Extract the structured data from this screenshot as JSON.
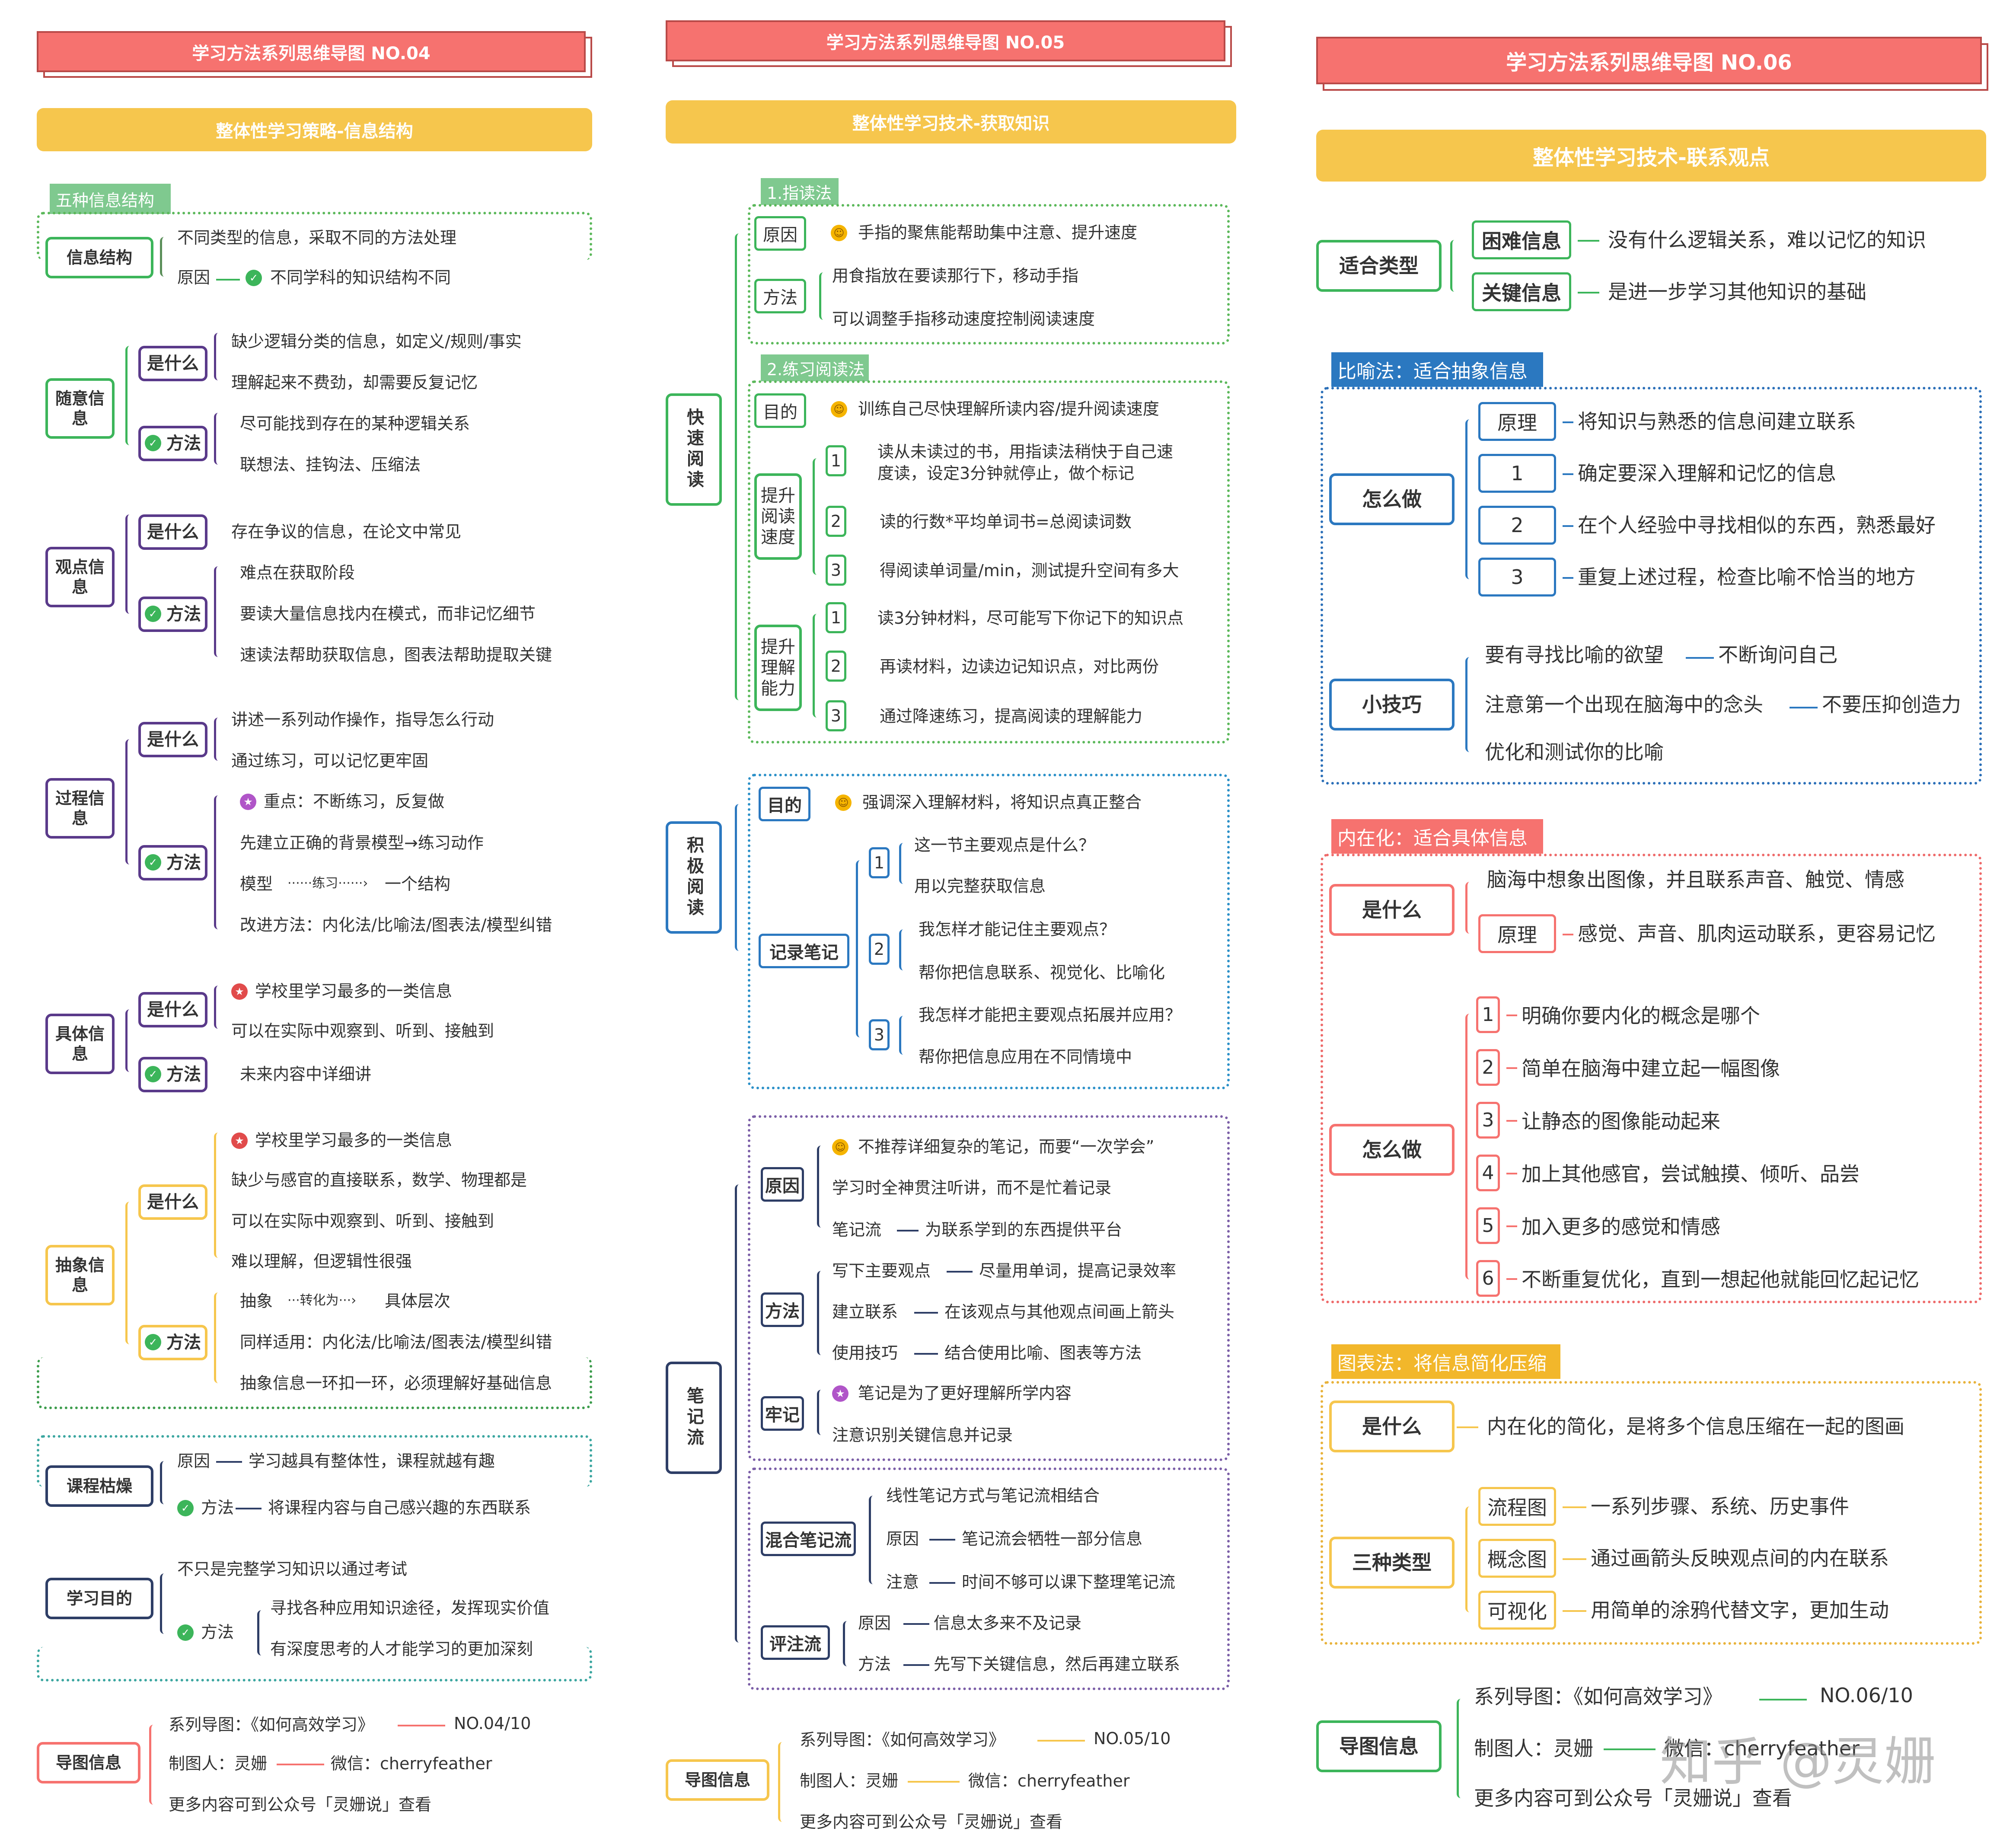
{
  "col1": {
    "title": "学习方法系列思维导图 NO.04",
    "subtitle": "整体性学习策略-信息结构",
    "tag": "五种信息结构",
    "nodes": {
      "xxjg": "信息结构",
      "sy": "随意信息",
      "gd": "观点信息",
      "gc": "过程信息",
      "jt": "具体信息",
      "cx": "抽象信息",
      "kc": "课程枯燥",
      "xx": "学习目的",
      "dt": "导图信息"
    },
    "what": "是什么",
    "method": "方法",
    "reason": "原因",
    "texts": {
      "a1": "不同类型的信息，采取不同的方法处理",
      "a2": "不同学科的知识结构不同",
      "b1": "缺少逻辑分类的信息，如定义/规则/事实",
      "b2": "理解起来不费劲，却需要反复记忆",
      "b3": "尽可能找到存在的某种逻辑关系",
      "b4": "联想法、挂钩法、压缩法",
      "c1": "存在争议的信息，在论文中常见",
      "c2": "难点在获取阶段",
      "c3": "要读大量信息找内在模式，而非记忆细节",
      "c4": "速读法帮助获取信息，图表法帮助提取关键",
      "d1": "讲述一系列动作操作，指导怎么行动",
      "d2": "通过练习，可以记忆更牢固",
      "d3": "重点：不断练习，反复做",
      "d4": "先建立正确的背景模型→练习动作",
      "d5a": "模型",
      "d5b": "······练习······›",
      "d5c": "一个结构",
      "d6": "改进方法：内化法/比喻法/图表法/模型纠错",
      "e1": "学校里学习最多的一类信息",
      "e2": "可以在实际中观察到、听到、接触到",
      "e3": "未来内容中详细讲",
      "f1": "学校里学习最多的一类信息",
      "f2": "缺少与感官的直接联系，数学、物理都是",
      "f3": "可以在实际中观察到、听到、接触到",
      "f4": "难以理解，但逻辑性很强",
      "f5a": "抽象",
      "f5b": "···转化为···›",
      "f5c": "具体层次",
      "f6": "同样适用：内化法/比喻法/图表法/模型纠错",
      "f7": "抽象信息一环扣一环，必须理解好基础信息",
      "g1": "学习越具有整体性，课程就越有趣",
      "g2": "将课程内容与自己感兴趣的东西联系",
      "h1": "不只是完整学习知识以通过考试",
      "h2": "寻找各种应用知识途径，发挥现实价值",
      "h3": "有深度思考的人才能学习的更加深刻",
      "i1": "系列导图：《如何高效学习》",
      "i1b": "NO.04/10",
      "i2": "制图人：灵姗",
      "i2b": "微信：cherryfeather",
      "i3": "更多内容可到公众号「灵姗说」查看"
    }
  },
  "col2": {
    "title": "学习方法系列思维导图 NO.05",
    "subtitle": "整体性学习技术-获取知识",
    "tag1": "1.指读法",
    "tag2": "2.练习阅读法",
    "nodes": {
      "ksyd": "快速阅读",
      "jjyd": "积极阅读",
      "bjl": "笔记流",
      "dt": "导图信息",
      "yy": "原因",
      "ff": "方法",
      "md": "目的",
      "tsydsd": "提升阅读速度",
      "tslj": "提升理解能力",
      "md2": "目的",
      "jlbj": "记录笔记",
      "yy2": "原因",
      "ff2": "方法",
      "lj": "牢记",
      "hh": "混合笔记流",
      "pz": "评注流"
    },
    "texts": {
      "a1": "手指的聚焦能帮助集中注意、提升速度",
      "a2": "用食指放在要读那行下，移动手指",
      "a3": "可以调整手指移动速度控制阅读速度",
      "b1": "训练自己尽快理解所读内容/提升阅读速度",
      "b2": "读从未读过的书，用指读法稍快于自己速",
      "b2b": "度读，设定3分钟就停止，做个标记",
      "b3": "读的行数*平均单词书=总阅读词数",
      "b4": "得阅读单词量/min，测试提升空间有多大",
      "b5": "读3分钟材料，尽可能写下你记下的知识点",
      "b6": "再读材料，边读边记知识点，对比两份",
      "b7": "通过降速练习，提高阅读的理解能力",
      "c1": "强调深入理解材料，将知识点真正整合",
      "c2": "这一节主要观点是什么？",
      "c3": "用以完整获取信息",
      "c4": "我怎样才能记住主要观点？",
      "c5": "帮你把信息联系、视觉化、比喻化",
      "c6": "我怎样才能把主要观点拓展并应用？",
      "c7": "帮你把信息应用在不同情境中",
      "d1": "不推荐详细复杂的笔记，而要“一次学会”",
      "d2": "学习时全神贯注听讲，而不是忙着记录",
      "d3": "笔记流",
      "d3b": "为联系学到的东西提供平台",
      "d4": "写下主要观点",
      "d4b": "尽量用单词，提高记录效率",
      "d5": "建立联系",
      "d5b": "在该观点与其他观点间画上箭头",
      "d6": "使用技巧",
      "d6b": "结合使用比喻、图表等方法",
      "d7": "笔记是为了更好理解所学内容",
      "d8": "注意识别关键信息并记录",
      "e1": "线性笔记方式与笔记流相结合",
      "e2": "原因",
      "e2b": "笔记流会牺牲一部分信息",
      "e3": "注意",
      "e3b": "时间不够可以课下整理笔记流",
      "e4": "原因",
      "e4b": "信息太多来不及记录",
      "e5": "方法",
      "e5b": "先写下关键信息，然后再建立联系",
      "i1": "系列导图：《如何高效学习》",
      "i1b": "NO.05/10",
      "i2": "制图人：灵姗",
      "i2b": "微信：cherryfeather",
      "i3": "更多内容可到公众号「灵姗说」查看"
    }
  },
  "col3": {
    "title": "学习方法系列思维导图 NO.06",
    "subtitle": "整体性学习技术-联系观点",
    "tag1": "比喻法：适合抽象信息",
    "tag2": "内在化：适合具体信息",
    "tag3": "图表法：将信息简化压缩",
    "nodes": {
      "shlx": "适合类型",
      "knxx": "困难信息",
      "gjxx": "关键信息",
      "zmz": "怎么做",
      "xjq": "小技巧",
      "ysm": "是什么",
      "zmz2": "怎么做",
      "ysm2": "是什么",
      "szlx": "三种类型",
      "dt": "导图信息",
      "yl": "原理",
      "yl2": "原理",
      "lct": "流程图",
      "gnt": "概念图",
      "ksh": "可视化"
    },
    "texts": {
      "a1": "没有什么逻辑关系，难以记忆的知识",
      "a2": "是进一步学习其他知识的基础",
      "b1": "将知识与熟悉的信息间建立联系",
      "b2": "确定要深入理解和记忆的信息",
      "b3": "在个人经验中寻找相似的东西，熟悉最好",
      "b4": "重复上述过程，检查比喻不恰当的地方",
      "c1": "要有寻找比喻的欲望",
      "c1b": "不断询问自己",
      "c2": "注意第一个出现在脑海中的念头",
      "c2b": "不要压抑创造力",
      "c3": "优化和测试你的比喻",
      "d1": "脑海中想象出图像，并且联系声音、触觉、情感",
      "d2": "感觉、声音、肌肉运动联系，更容易记忆",
      "e1": "明确你要内化的概念是哪个",
      "e2": "简单在脑海中建立起一幅图像",
      "e3": "让静态的图像能动起来",
      "e4": "加上其他感官，尝试触摸、倾听、品尝",
      "e5": "加入更多的感觉和情感",
      "e6": "不断重复优化，直到一想起他就能回忆起记忆",
      "f1": "内在化的简化，是将多个信息压缩在一起的图画",
      "f2": "一系列步骤、系统、历史事件",
      "f3": "通过画箭头反映观点间的内在联系",
      "f4": "用简单的涂鸦代替文字，更加生动",
      "i1": "系列导图：《如何高效学习》",
      "i1b": "NO.06/10",
      "i2": "制图人：灵姗",
      "i2b": "微信：cherryfeather",
      "i3": "更多内容可到公众号「灵姗说」查看"
    }
  },
  "nums": [
    "1",
    "2",
    "3",
    "4",
    "5",
    "6"
  ],
  "watermark": "知乎 @灵姗",
  "colors": {
    "red": "#f6726f",
    "yellow": "#f6c64d",
    "green": "#3cb55a",
    "purple": "#5a3a8a",
    "navy": "#2e3e66",
    "blue": "#2b78c0"
  }
}
